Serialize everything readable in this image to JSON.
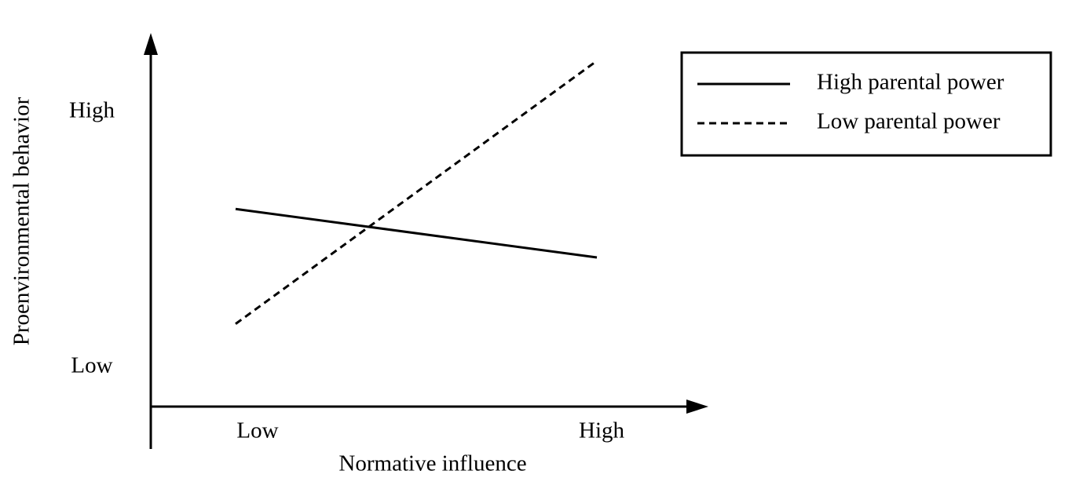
{
  "chart_data": {
    "type": "line",
    "x_label": "Normative influence",
    "y_label": "Proenvironmental behavior",
    "categories": [
      "Low",
      "High"
    ],
    "series": [
      {
        "name": "High parental power",
        "color": "#000000",
        "dash": "solid",
        "values": [
          6.2,
          4.3
        ]
      },
      {
        "name": "Low parental power",
        "color": "#000000",
        "dash": "dashed",
        "values": [
          1.7,
          12
        ]
      }
    ],
    "ylim": [
      -1.6,
      13
    ],
    "yticks": [
      {
        "value": 0,
        "label": "Low"
      },
      {
        "value": 10,
        "label": "High"
      }
    ],
    "legend": "upper right"
  }
}
